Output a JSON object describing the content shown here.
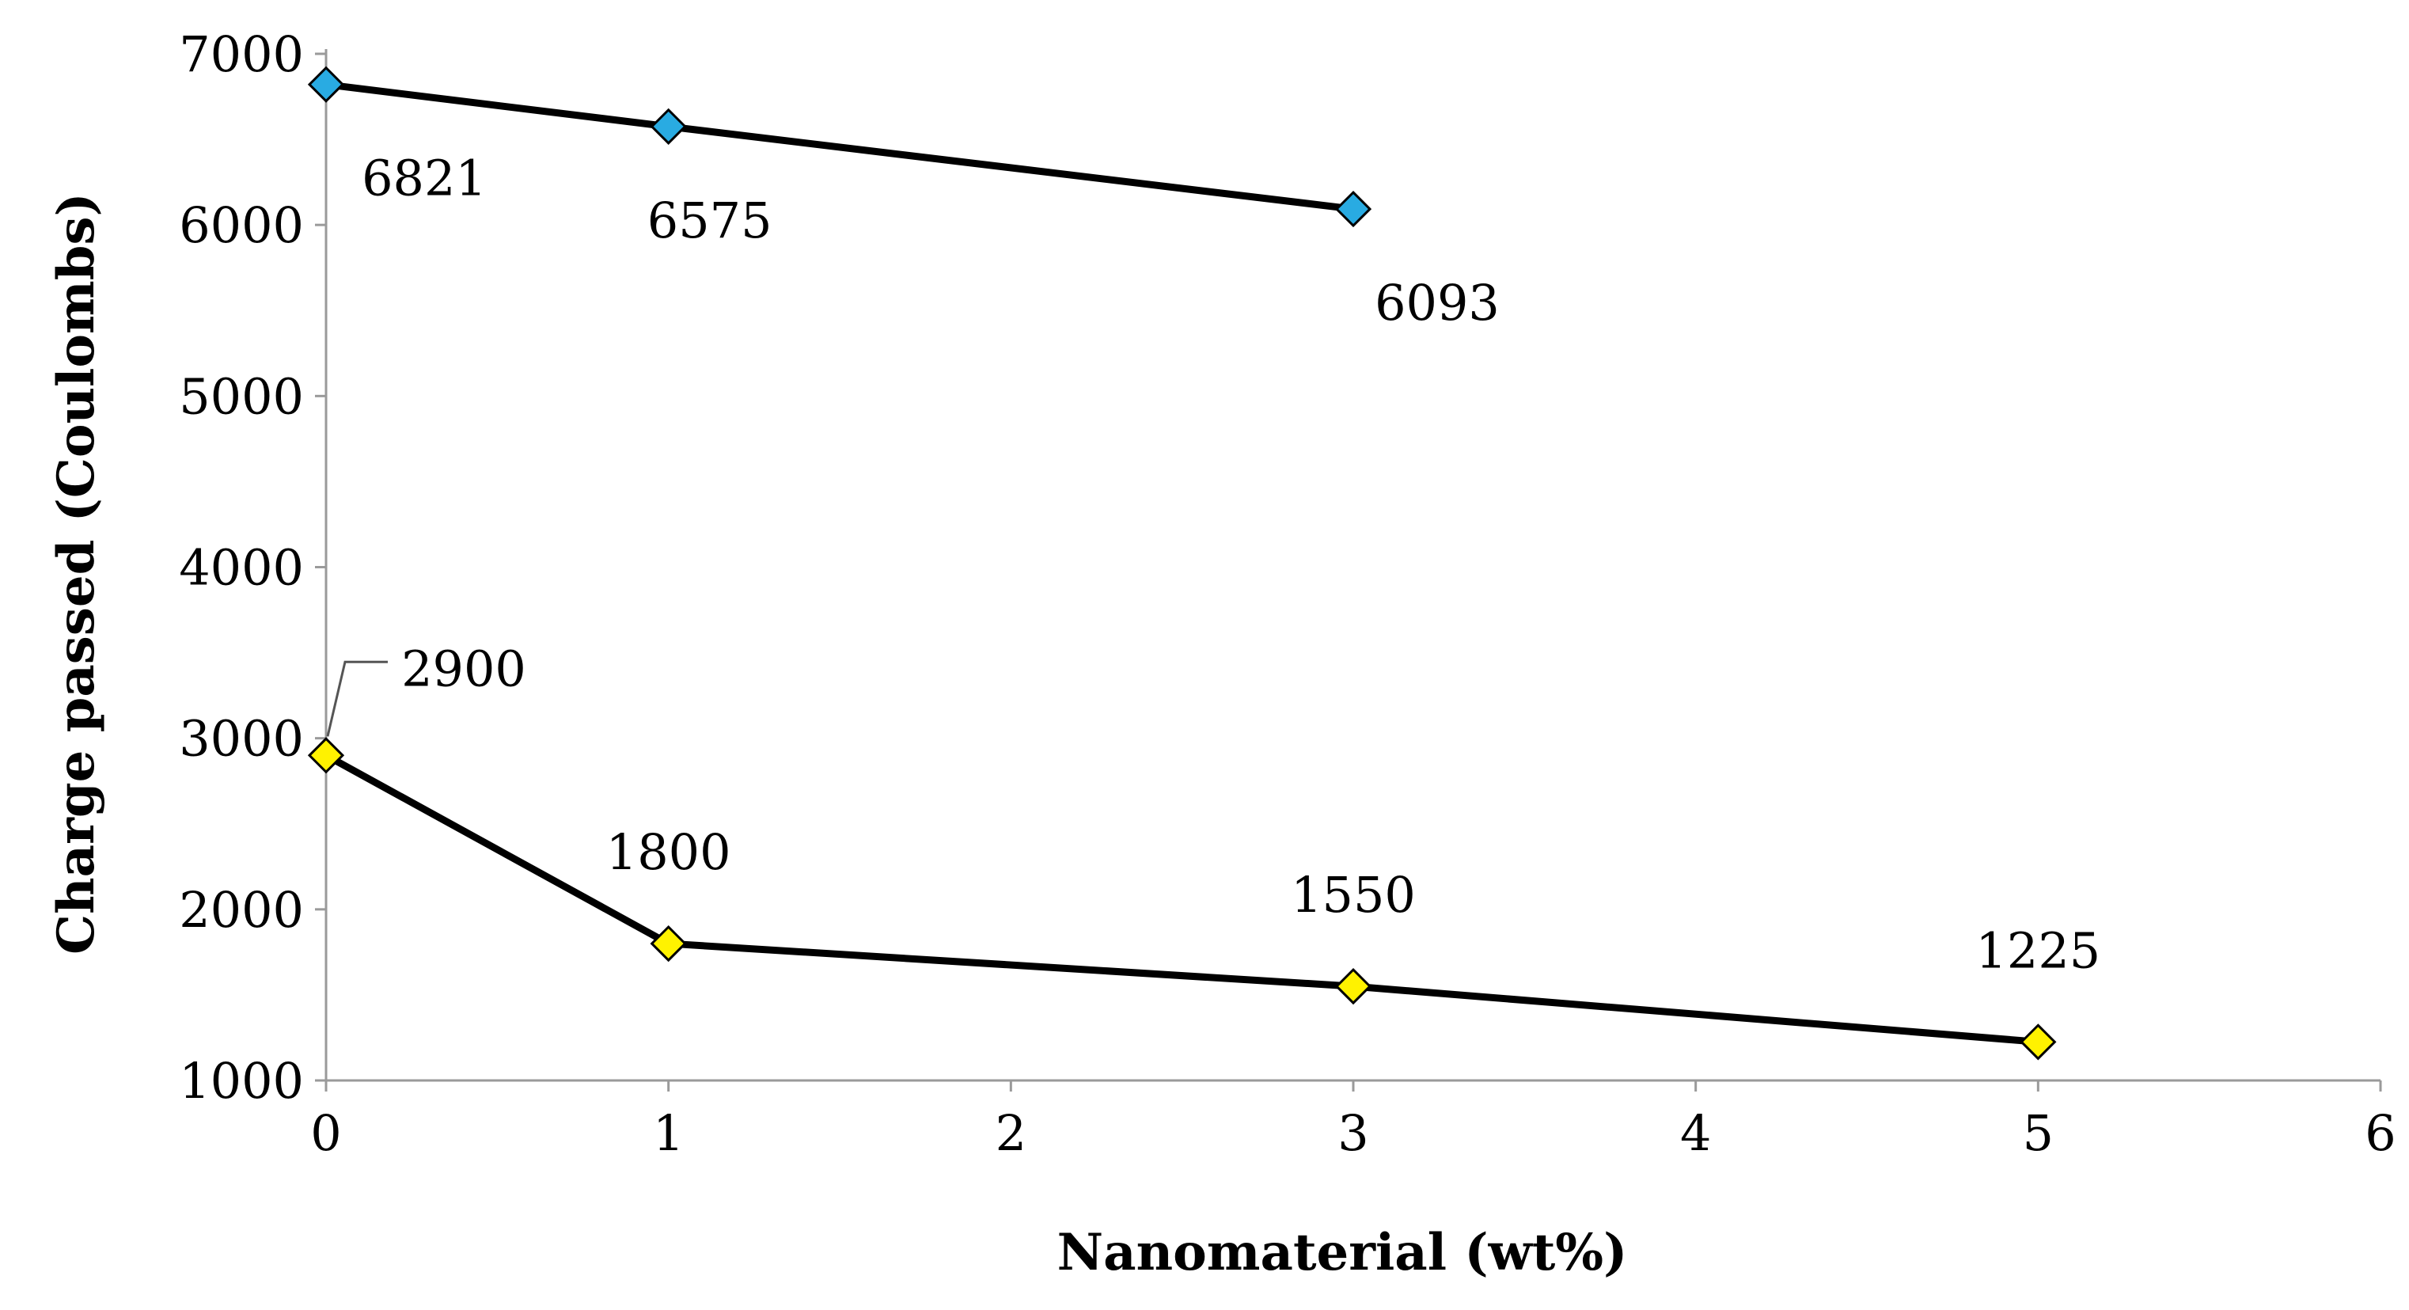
{
  "chart_data": {
    "type": "line",
    "xlabel": "Nanomaterial (wt%)",
    "ylabel": "Charge passed (Coulombs)",
    "xlim": [
      0,
      6
    ],
    "ylim": [
      1000,
      7000
    ],
    "xticks": [
      0,
      1,
      2,
      3,
      4,
      5,
      6
    ],
    "yticks": [
      1000,
      2000,
      3000,
      4000,
      5000,
      6000,
      7000
    ],
    "grid": false,
    "series": [
      {
        "name": "Series 1",
        "marker": "diamond",
        "color": "#29ABE2",
        "x": [
          0,
          1,
          3
        ],
        "values": [
          6821,
          6575,
          6093
        ],
        "labels": [
          "6821",
          "6575",
          "6093"
        ]
      },
      {
        "name": "Series 2",
        "marker": "diamond",
        "color": "#FFF200",
        "x": [
          0,
          1,
          3,
          5
        ],
        "values": [
          2900,
          1800,
          1550,
          1225
        ],
        "labels": [
          "2900",
          "1800",
          "1550",
          "1225"
        ]
      }
    ]
  }
}
